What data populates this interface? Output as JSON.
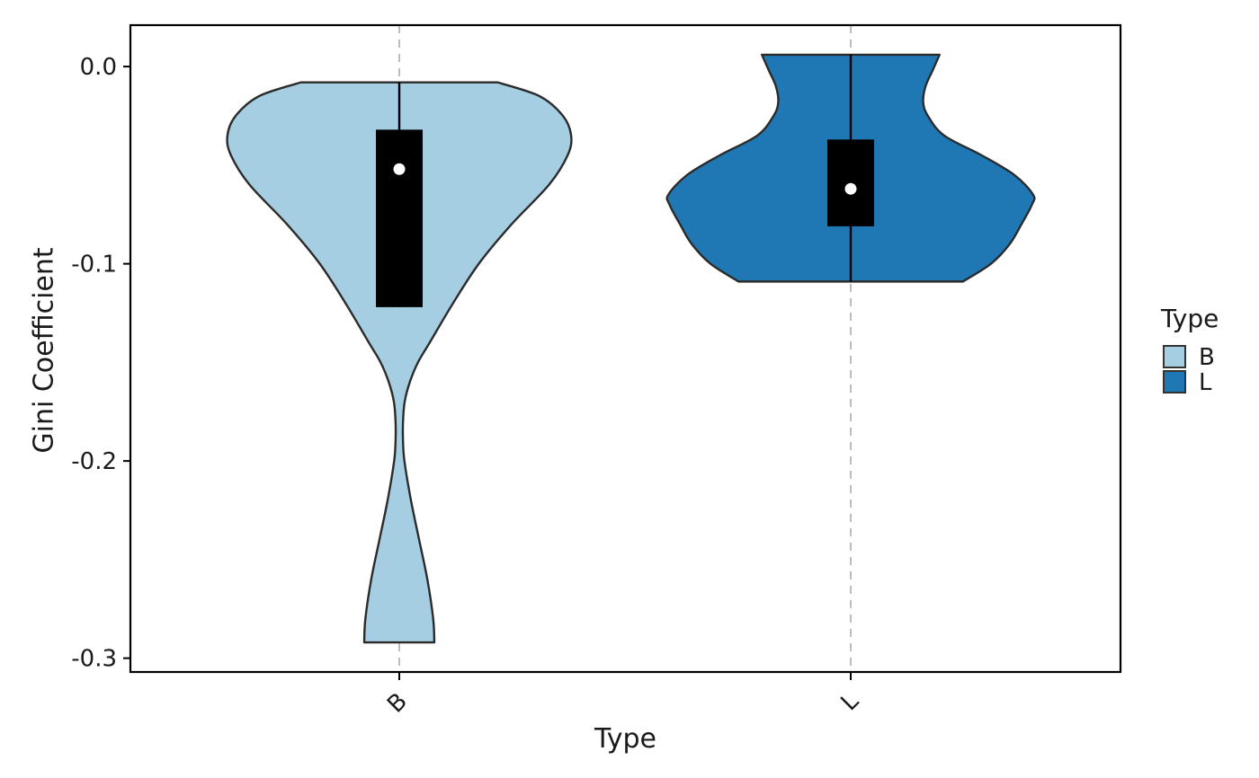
{
  "chart_data": {
    "type": "violin",
    "xlabel": "Type",
    "ylabel": "Gini Coefficient",
    "ylim": [
      -0.307,
      0.021
    ],
    "yticks": [
      0.0,
      -0.1,
      -0.2,
      -0.3
    ],
    "ytick_labels": [
      "0.0",
      "-0.1",
      "-0.2",
      "-0.3"
    ],
    "grid": "vertical dashed lines at categories",
    "legend": {
      "title": "Type",
      "position": "right",
      "entries": [
        {
          "label": "B",
          "color": "#a6cee3"
        },
        {
          "label": "L",
          "color": "#1f78b4"
        }
      ]
    },
    "categories": [
      "B",
      "L"
    ],
    "series": [
      {
        "name": "B",
        "color": "#a6cee3",
        "violin_profile": [
          [
            -0.292,
            0.15
          ],
          [
            -0.28,
            0.145
          ],
          [
            -0.26,
            0.12
          ],
          [
            -0.24,
            0.085
          ],
          [
            -0.22,
            0.05
          ],
          [
            -0.2,
            0.022
          ],
          [
            -0.19,
            0.016
          ],
          [
            -0.18,
            0.016
          ],
          [
            -0.17,
            0.023
          ],
          [
            -0.16,
            0.045
          ],
          [
            -0.15,
            0.08
          ],
          [
            -0.14,
            0.13
          ],
          [
            -0.12,
            0.23
          ],
          [
            -0.1,
            0.34
          ],
          [
            -0.08,
            0.48
          ],
          [
            -0.06,
            0.64
          ],
          [
            -0.045,
            0.72
          ],
          [
            -0.035,
            0.735
          ],
          [
            -0.025,
            0.7
          ],
          [
            -0.015,
            0.6
          ],
          [
            -0.008,
            0.42
          ]
        ],
        "box": {
          "q1": -0.122,
          "q3": -0.032,
          "whisker_low": -0.122,
          "whisker_high": -0.008
        },
        "median": -0.052
      },
      {
        "name": "L",
        "color": "#1f78b4",
        "violin_profile": [
          [
            -0.109,
            0.48
          ],
          [
            -0.1,
            0.6
          ],
          [
            -0.09,
            0.68
          ],
          [
            -0.08,
            0.73
          ],
          [
            -0.07,
            0.775
          ],
          [
            -0.065,
            0.78
          ],
          [
            -0.055,
            0.7
          ],
          [
            -0.045,
            0.56
          ],
          [
            -0.035,
            0.4
          ],
          [
            -0.025,
            0.33
          ],
          [
            -0.018,
            0.31
          ],
          [
            -0.01,
            0.32
          ],
          [
            -0.002,
            0.35
          ],
          [
            0.006,
            0.38
          ]
        ],
        "box": {
          "q1": -0.081,
          "q3": -0.037,
          "whisker_low": -0.109,
          "whisker_high": 0.006
        },
        "median": -0.062
      }
    ]
  }
}
